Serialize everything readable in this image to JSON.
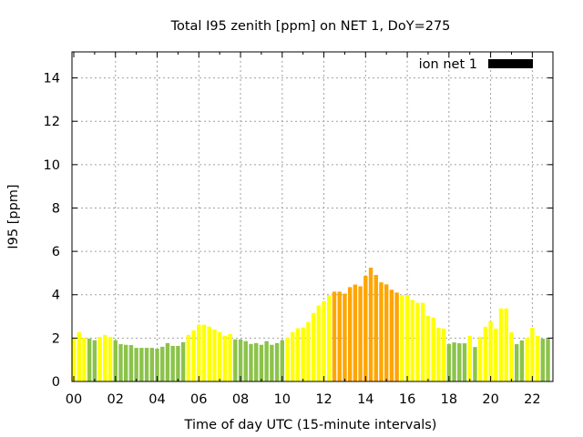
{
  "chart_data": {
    "type": "bar",
    "title": "Total I95 zenith [ppm] on NET 1, DoY=275",
    "xlabel": "Time of day UTC (15-minute intervals)",
    "ylabel": "I95 [ppm]",
    "ylim": [
      0,
      15.2
    ],
    "yticks": [
      0,
      2,
      4,
      6,
      8,
      10,
      12,
      14
    ],
    "xtick_labels": [
      "00",
      "02",
      "04",
      "06",
      "08",
      "10",
      "12",
      "14",
      "16",
      "18",
      "20",
      "22"
    ],
    "xtick_interval_bars": 8,
    "grid": true,
    "legend": {
      "label": "ion net 1",
      "position": "top-right",
      "swatch_color": "#000000"
    },
    "bar_interval_minutes": 15,
    "color_thresholds": [
      {
        "below": 2.0,
        "color": "#8bc34a",
        "name": "low"
      },
      {
        "below": 4.0,
        "color": "#ffff00",
        "name": "moderate"
      },
      {
        "below": 6.0,
        "color": "#ffa500",
        "name": "elevated"
      }
    ],
    "values": [
      2.02,
      2.27,
      2.02,
      1.98,
      1.9,
      2.06,
      2.15,
      2.06,
      1.9,
      1.72,
      1.69,
      1.68,
      1.55,
      1.55,
      1.55,
      1.55,
      1.51,
      1.6,
      1.77,
      1.64,
      1.64,
      1.81,
      2.15,
      2.36,
      2.62,
      2.62,
      2.53,
      2.4,
      2.28,
      2.11,
      2.19,
      1.94,
      1.94,
      1.86,
      1.73,
      1.77,
      1.69,
      1.86,
      1.69,
      1.77,
      1.9,
      2.03,
      2.28,
      2.45,
      2.49,
      2.74,
      3.16,
      3.5,
      3.71,
      3.97,
      4.14,
      4.14,
      4.05,
      4.35,
      4.47,
      4.39,
      4.87,
      5.25,
      4.91,
      4.57,
      4.48,
      4.23,
      4.1,
      3.99,
      3.99,
      3.76,
      3.63,
      3.63,
      3.03,
      2.95,
      2.48,
      2.44,
      1.72,
      1.8,
      1.76,
      1.76,
      2.1,
      1.59,
      2.06,
      2.52,
      2.78,
      2.44,
      3.37,
      3.37,
      2.27,
      1.72,
      1.89,
      2.02,
      2.48,
      2.1,
      1.97,
      1.97
    ]
  }
}
